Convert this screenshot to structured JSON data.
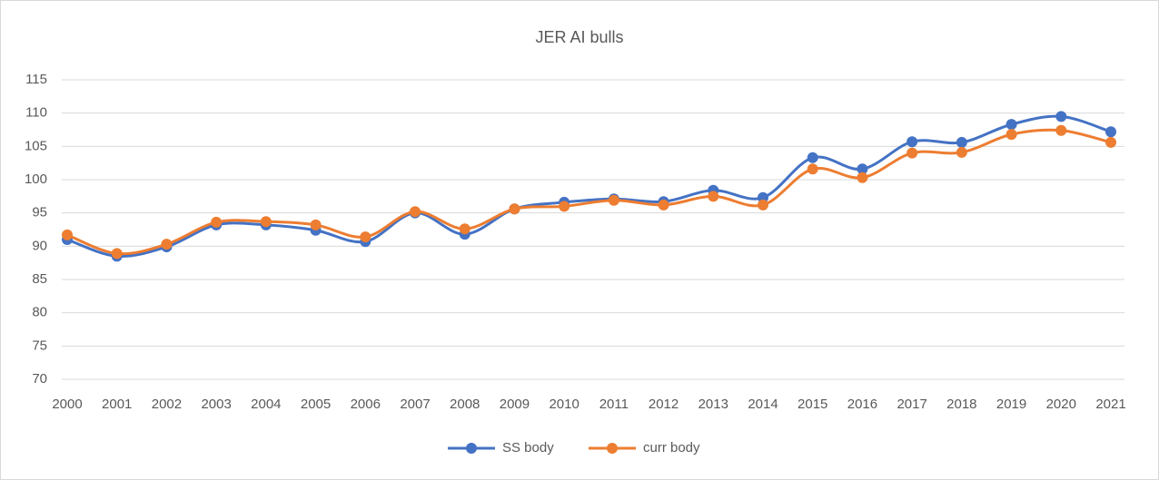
{
  "chart_data": {
    "type": "line",
    "title": "JER AI bulls",
    "categories": [
      "2000",
      "2001",
      "2002",
      "2003",
      "2004",
      "2005",
      "2006",
      "2007",
      "2008",
      "2009",
      "2010",
      "2011",
      "2012",
      "2013",
      "2014",
      "2015",
      "2016",
      "2017",
      "2018",
      "2019",
      "2020",
      "2021"
    ],
    "series": [
      {
        "name": "SS body",
        "color": "#4472c4",
        "values": [
          91.0,
          88.5,
          89.9,
          93.2,
          93.2,
          92.4,
          90.7,
          95.0,
          91.8,
          95.6,
          96.6,
          97.1,
          96.7,
          98.4,
          97.3,
          103.3,
          101.6,
          105.7,
          105.6,
          108.3,
          109.5,
          107.2
        ]
      },
      {
        "name": "curr body",
        "color": "#ed7d31",
        "values": [
          91.7,
          88.9,
          90.3,
          93.6,
          93.7,
          93.2,
          91.4,
          95.2,
          92.6,
          95.6,
          96.0,
          96.9,
          96.2,
          97.5,
          96.2,
          101.6,
          100.3,
          104.0,
          104.1,
          106.8,
          107.4,
          105.6
        ]
      }
    ],
    "ylim": [
      70,
      115
    ],
    "yticks": [
      70,
      75,
      80,
      85,
      90,
      95,
      100,
      105,
      110,
      115
    ],
    "grid": true,
    "smooth": true,
    "legend": "bottom"
  }
}
